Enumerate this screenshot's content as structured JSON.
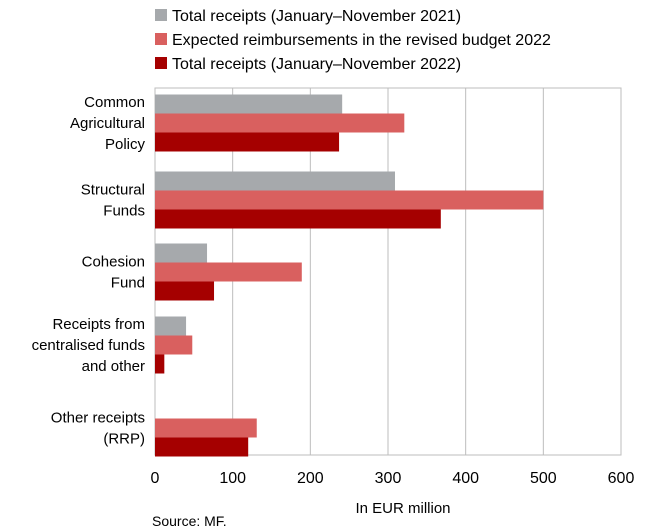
{
  "chart_data": {
    "type": "bar",
    "orientation": "horizontal",
    "categories": [
      [
        "Common",
        "Agricultural",
        "Policy"
      ],
      [
        "Structural",
        "Funds"
      ],
      [
        "Cohesion",
        "Fund"
      ],
      [
        "Receipts from",
        "centralised funds",
        "and other"
      ],
      [
        "Other receipts",
        "(RRP)"
      ]
    ],
    "series": [
      {
        "name": "Total receipts (January–November 2021)",
        "color": "#a6a9ac",
        "values": [
          241,
          309,
          67,
          40,
          0
        ]
      },
      {
        "name": "Expected reimbursements in the revised budget 2022",
        "color": "#d9605f",
        "values": [
          321,
          500,
          189,
          48,
          131
        ]
      },
      {
        "name": "Total receipts (January–November 2022)",
        "color": "#a50000",
        "values": [
          237,
          368,
          76,
          12,
          120
        ]
      }
    ],
    "xlabel": "In EUR million",
    "xlim": [
      0,
      600
    ],
    "xticks": [
      0,
      100,
      200,
      300,
      400,
      500,
      600
    ],
    "grid": "vertical",
    "legend": "top-left"
  },
  "source": "Source: MF."
}
